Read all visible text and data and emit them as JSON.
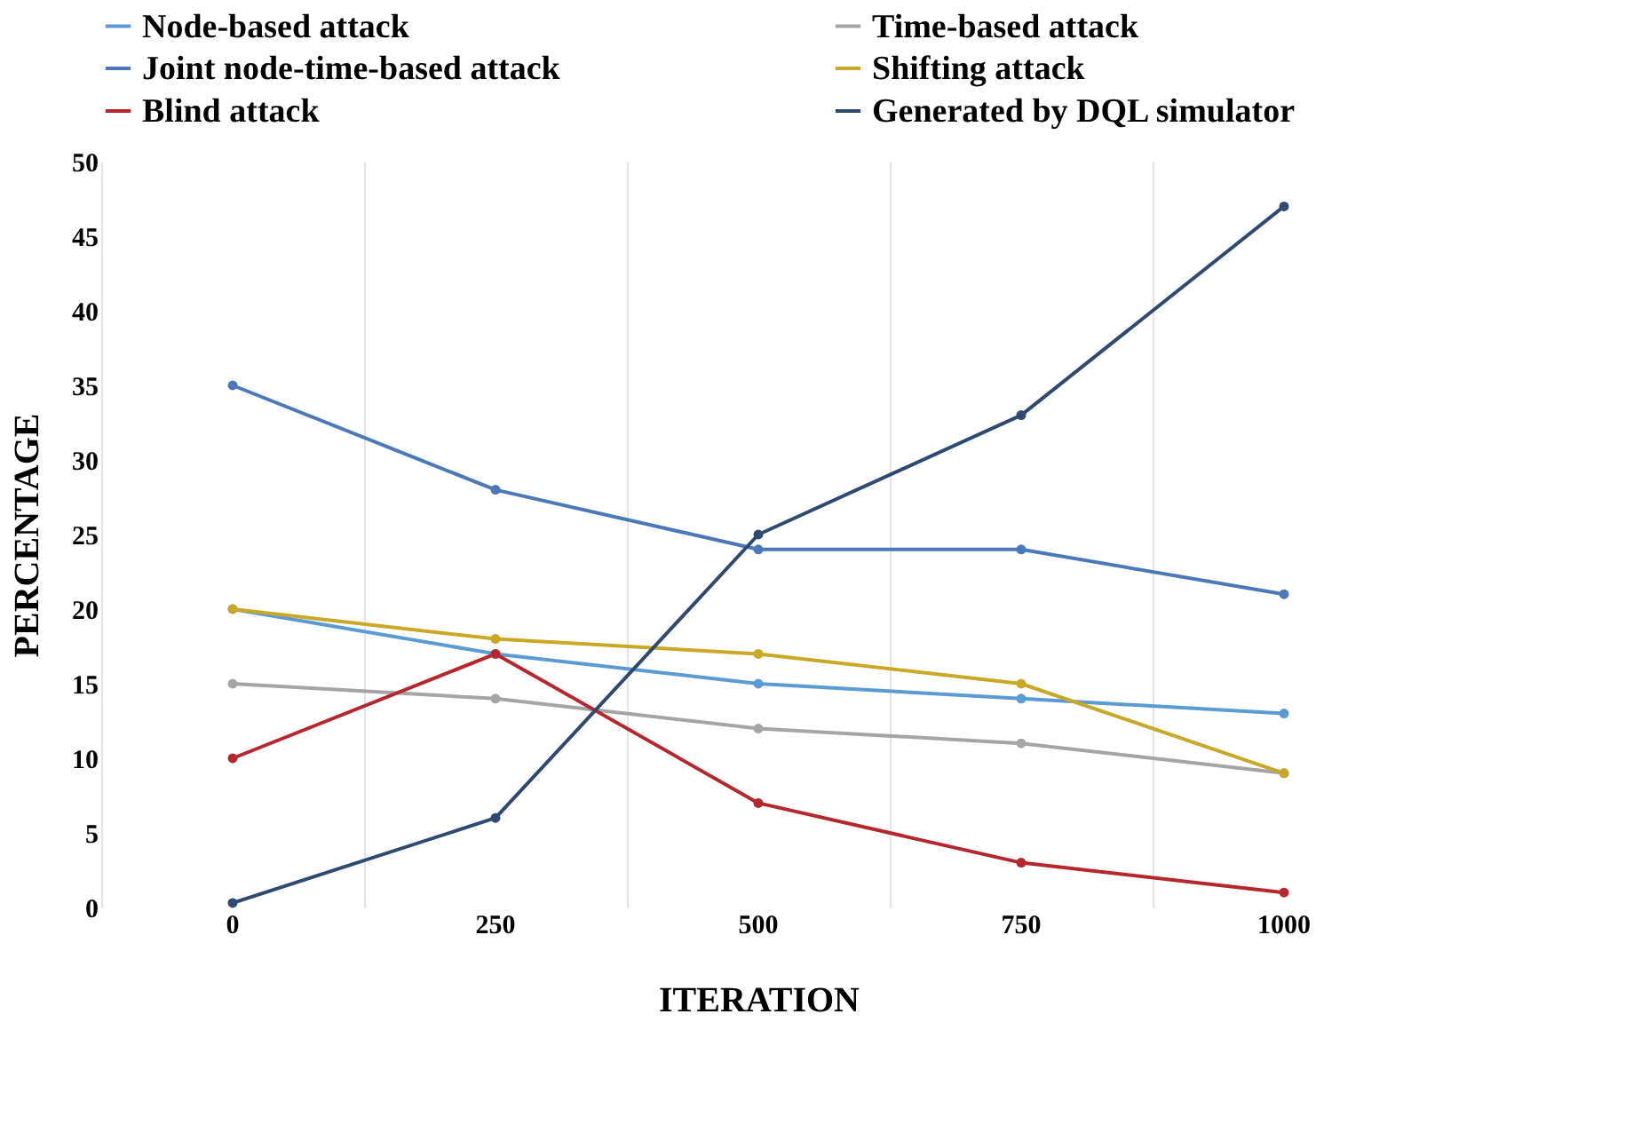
{
  "chart_data": {
    "type": "line",
    "xlabel": "ITERATION",
    "ylabel": "PERCENTAGE",
    "categories": [
      "0",
      "250",
      "500",
      "750",
      "1000"
    ],
    "ylim": [
      0,
      50
    ],
    "yticks": [
      0,
      5,
      10,
      15,
      20,
      25,
      30,
      35,
      40,
      45,
      50
    ],
    "grid": "x",
    "legend": "top",
    "marker": "circle",
    "line_style": "solid",
    "series": [
      {
        "name": "Node-based attack",
        "color": "#5b9bd5",
        "values": [
          20,
          17,
          15,
          14,
          13
        ]
      },
      {
        "name": "Time-based attack",
        "color": "#a5a5a5",
        "values": [
          15,
          14,
          12,
          11,
          9
        ]
      },
      {
        "name": "Joint node-time-based attack",
        "color": "#4a78b8",
        "values": [
          35,
          28,
          24,
          24,
          21
        ]
      },
      {
        "name": "Shifting attack",
        "color": "#c9a825",
        "values": [
          20,
          18,
          17,
          15,
          9
        ]
      },
      {
        "name": "Blind attack",
        "color": "#b7262c",
        "values": [
          10,
          17,
          7,
          3,
          1
        ]
      },
      {
        "name": "Generated by DQL simulator",
        "color": "#2e4a72",
        "values": [
          0.3,
          6,
          25,
          33,
          47
        ]
      }
    ]
  }
}
